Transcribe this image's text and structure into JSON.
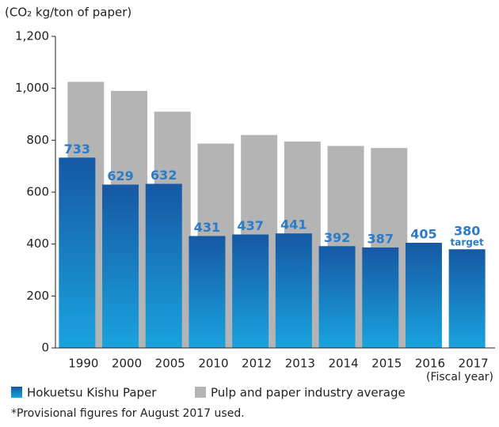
{
  "chart_data": {
    "type": "bar",
    "y_axis_label": "(CO₂ kg/ton of paper)",
    "x_axis_label": "(Fiscal year)",
    "categories": [
      "1990",
      "2000",
      "2005",
      "2010",
      "2012",
      "2013",
      "2014",
      "2015",
      "2016",
      "2017"
    ],
    "series": [
      {
        "name": "Hokuetsu Kishu Paper",
        "color": "#1a6fb8",
        "values": [
          733,
          629,
          632,
          431,
          437,
          441,
          392,
          387,
          405,
          380
        ]
      },
      {
        "name": "Pulp and paper industry average",
        "color": "#b4b4b5",
        "values": [
          1025,
          990,
          910,
          787,
          820,
          795,
          778,
          770,
          null,
          null
        ]
      }
    ],
    "annotation": "target",
    "ylim": [
      0,
      1200
    ],
    "yticks": [
      0,
      200,
      400,
      600,
      800,
      {
        "value": 1000,
        "label": "1,000"
      },
      {
        "value": 1200,
        "label": "1,200"
      }
    ],
    "footnote": "*Provisional figures for August 2017 used."
  }
}
